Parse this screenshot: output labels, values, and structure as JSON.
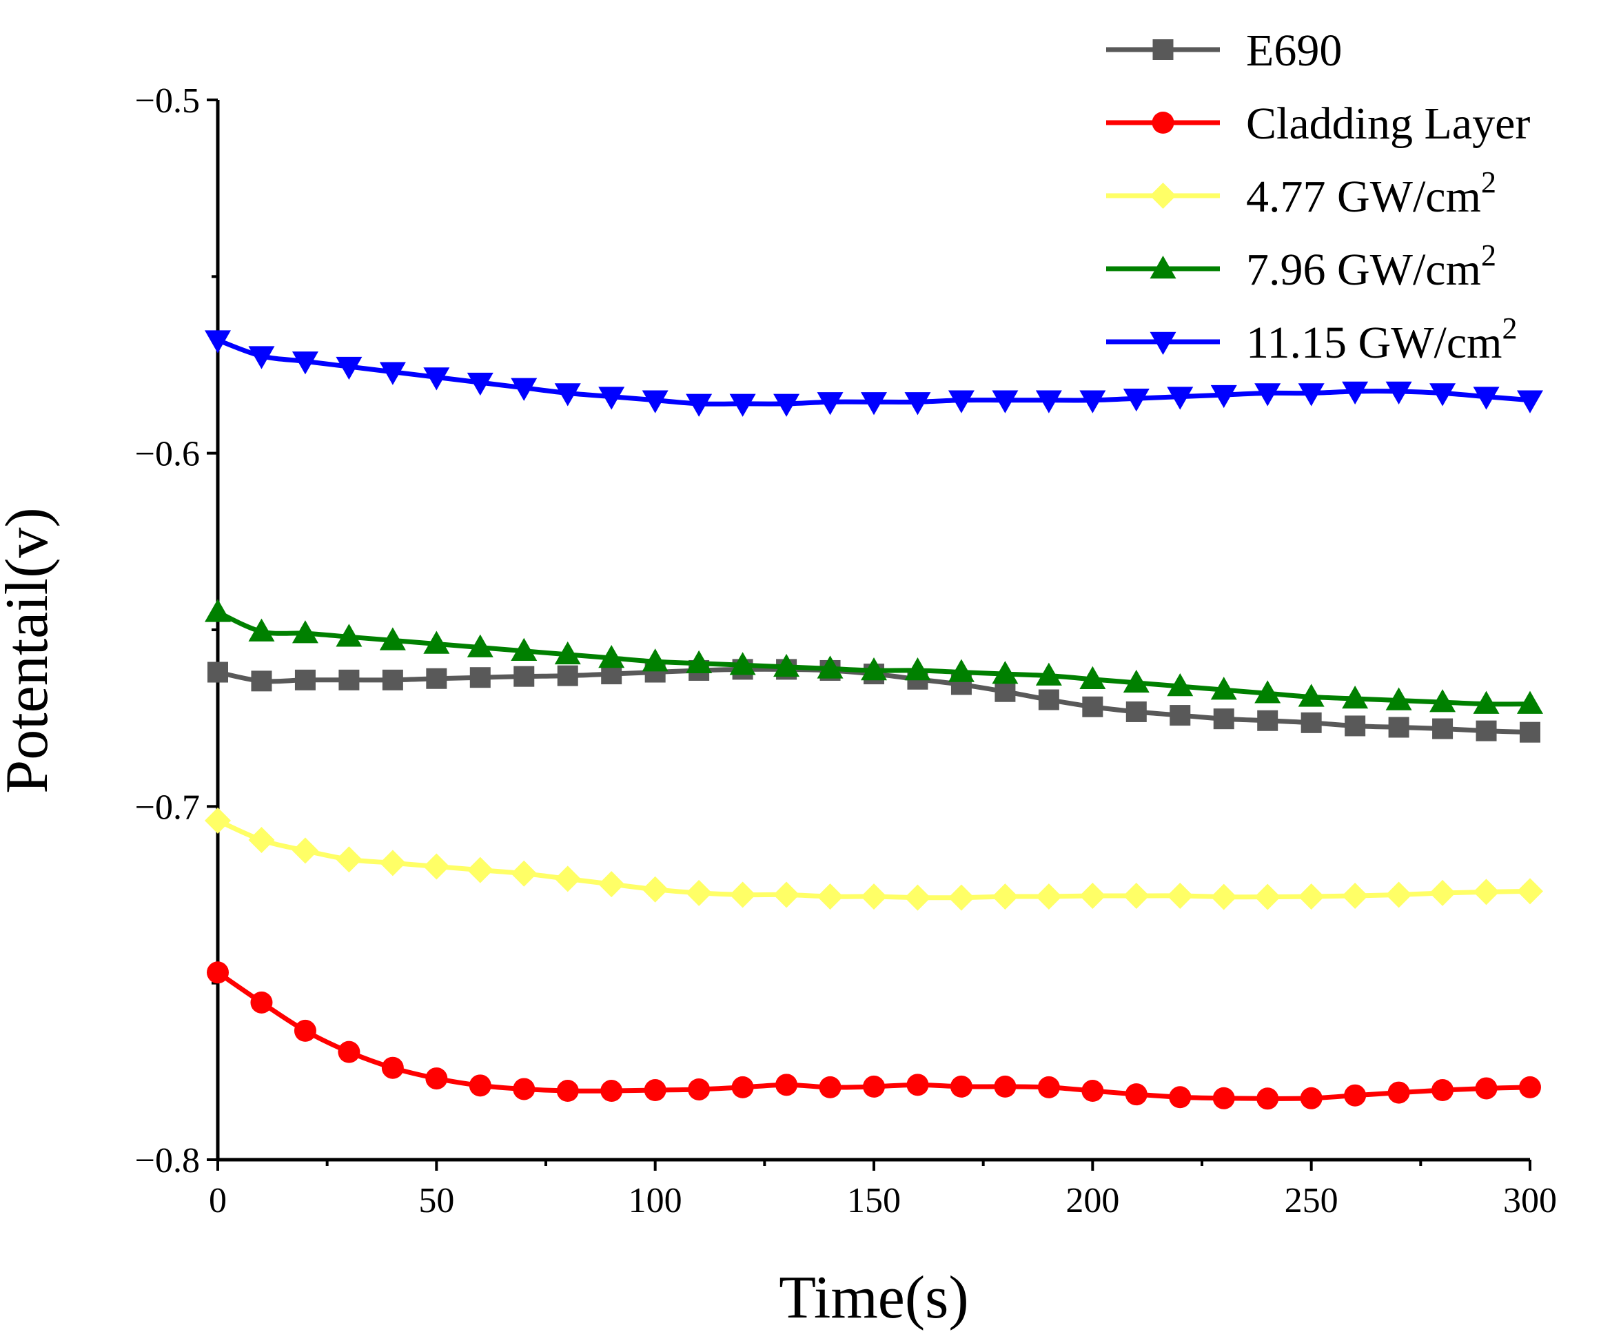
{
  "chart_data": {
    "type": "line",
    "title": "",
    "xlabel": "Time(s)",
    "ylabel": "Potentail(v)",
    "xlim": [
      0,
      300
    ],
    "ylim": [
      -0.8,
      -0.5
    ],
    "xticks": [
      0,
      50,
      100,
      150,
      200,
      250,
      300
    ],
    "xtick_labels": [
      "0",
      "50",
      "100",
      "150",
      "200",
      "250",
      "300"
    ],
    "yticks": [
      -0.8,
      -0.7,
      -0.6,
      -0.5
    ],
    "ytick_labels": [
      "−0.8",
      "−0.7",
      "−0.6",
      "−0.5"
    ],
    "grid": false,
    "legend_position": "top-right",
    "x": [
      0,
      10,
      20,
      30,
      40,
      50,
      60,
      70,
      80,
      90,
      100,
      110,
      120,
      130,
      140,
      150,
      160,
      170,
      180,
      190,
      200,
      210,
      220,
      230,
      240,
      250,
      260,
      270,
      280,
      290,
      300
    ],
    "series": [
      {
        "name": "E690",
        "label_main": "E690",
        "label_sup": "",
        "color": "#595959",
        "marker": "square",
        "values": [
          -0.662,
          -0.6645,
          -0.6642,
          -0.6642,
          -0.6642,
          -0.6638,
          -0.6635,
          -0.6632,
          -0.663,
          -0.6625,
          -0.662,
          -0.6615,
          -0.6612,
          -0.6612,
          -0.6615,
          -0.6625,
          -0.664,
          -0.6655,
          -0.6675,
          -0.6698,
          -0.6718,
          -0.6732,
          -0.6742,
          -0.6752,
          -0.6757,
          -0.6763,
          -0.6772,
          -0.6776,
          -0.678,
          -0.6786,
          -0.679
        ]
      },
      {
        "name": "Cladding Layer",
        "label_main": "Cladding Layer",
        "label_sup": "",
        "color": "#ff0000",
        "marker": "circle",
        "values": [
          -0.747,
          -0.7555,
          -0.7635,
          -0.7695,
          -0.774,
          -0.777,
          -0.779,
          -0.78,
          -0.7805,
          -0.7805,
          -0.7803,
          -0.7801,
          -0.7795,
          -0.7788,
          -0.7795,
          -0.7793,
          -0.7788,
          -0.7793,
          -0.7793,
          -0.7795,
          -0.7805,
          -0.7815,
          -0.7823,
          -0.7826,
          -0.7827,
          -0.7826,
          -0.7818,
          -0.781,
          -0.7803,
          -0.7798,
          -0.7795
        ]
      },
      {
        "name": "4.77 GW/cm2",
        "label_main": "4.77 GW/cm",
        "label_sup": "2",
        "color": "#ffff66",
        "marker": "diamond",
        "values": [
          -0.704,
          -0.7095,
          -0.7125,
          -0.715,
          -0.716,
          -0.717,
          -0.718,
          -0.719,
          -0.7205,
          -0.722,
          -0.7235,
          -0.7245,
          -0.725,
          -0.725,
          -0.7255,
          -0.7255,
          -0.7258,
          -0.7258,
          -0.7255,
          -0.7255,
          -0.7253,
          -0.7253,
          -0.7253,
          -0.7256,
          -0.7256,
          -0.7255,
          -0.7253,
          -0.725,
          -0.7245,
          -0.7242,
          -0.724
        ]
      },
      {
        "name": "7.96 GW/cm2",
        "label_main": "7.96 GW/cm",
        "label_sup": "2",
        "color": "#008000",
        "marker": "triangle-up",
        "values": [
          -0.645,
          -0.6505,
          -0.651,
          -0.652,
          -0.653,
          -0.654,
          -0.655,
          -0.656,
          -0.657,
          -0.658,
          -0.659,
          -0.6595,
          -0.66,
          -0.6605,
          -0.661,
          -0.6615,
          -0.6615,
          -0.662,
          -0.6625,
          -0.663,
          -0.664,
          -0.665,
          -0.666,
          -0.667,
          -0.668,
          -0.669,
          -0.6695,
          -0.67,
          -0.6705,
          -0.671,
          -0.671
        ]
      },
      {
        "name": "11.15 GW/cm2",
        "label_main": "11.15 GW/cm",
        "label_sup": "2",
        "color": "#0000ff",
        "marker": "triangle-down",
        "values": [
          -0.568,
          -0.5725,
          -0.574,
          -0.5755,
          -0.577,
          -0.5785,
          -0.58,
          -0.5815,
          -0.583,
          -0.584,
          -0.585,
          -0.586,
          -0.586,
          -0.586,
          -0.5855,
          -0.5855,
          -0.5855,
          -0.585,
          -0.585,
          -0.585,
          -0.585,
          -0.5845,
          -0.584,
          -0.5835,
          -0.583,
          -0.583,
          -0.5825,
          -0.5825,
          -0.583,
          -0.584,
          -0.585
        ]
      }
    ]
  }
}
